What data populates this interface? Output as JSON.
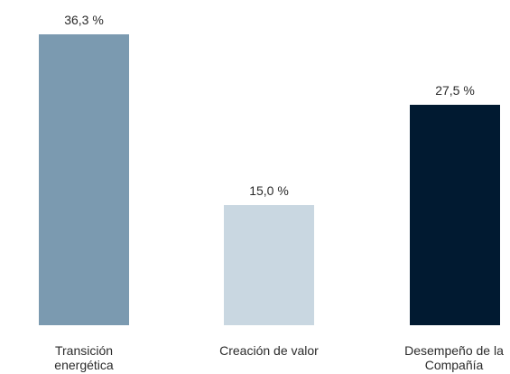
{
  "chart_data": {
    "type": "bar",
    "categories": [
      "Transición energética",
      "Creación de valor",
      "Desempeño de la Compañía"
    ],
    "values": [
      36.3,
      15.0,
      27.5
    ],
    "value_labels": [
      "36,3 %",
      "15,0 %",
      "27,5 %"
    ],
    "colors": [
      "#7b9ab0",
      "#c9d7e1",
      "#011a31"
    ]
  }
}
